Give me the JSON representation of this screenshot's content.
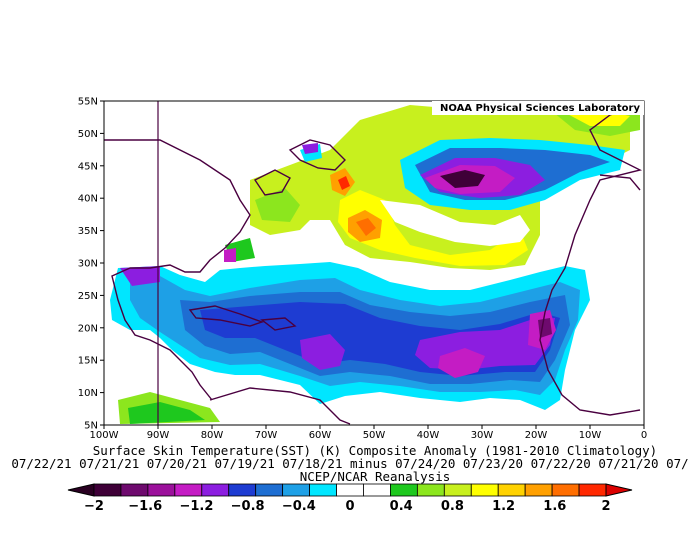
{
  "credit": "NOAA Physical Sciences Laboratory",
  "title": "Surface Skin Temperature(SST) (K) Composite Anomaly (1981-2010 Climatology)",
  "dates_line": "07/22/21 07/21/21 07/20/21 07/19/21 07/18/21 minus 07/24/20 07/23/20 07/22/20 07/21/20 07/",
  "source": "NCEP/NCAR Reanalysis",
  "lat_labels": [
    "55N",
    "50N",
    "45N",
    "40N",
    "35N",
    "30N",
    "25N",
    "20N",
    "15N",
    "10N",
    "5N"
  ],
  "lon_labels": [
    "100W",
    "90W",
    "80W",
    "70W",
    "60W",
    "50W",
    "40W",
    "30W",
    "20W",
    "10W",
    "0"
  ],
  "colorbar": {
    "labels": [
      "−2",
      "−1.6",
      "−1.2",
      "−0.8",
      "−0.4",
      "0",
      "0.4",
      "0.8",
      "1.2",
      "1.6",
      "2"
    ],
    "colors": [
      "#3f0038",
      "#6e0a6e",
      "#9b109b",
      "#c41cc4",
      "#8c1ee0",
      "#1e3cd2",
      "#1e6ed2",
      "#1ea0e6",
      "#00e6ff",
      "#ffffff",
      "#ffffff",
      "#1ec81e",
      "#8ce61e",
      "#c8f01e",
      "#ffff00",
      "#ffd200",
      "#ffa000",
      "#ff6e00",
      "#ff2800"
    ],
    "below_color": "#2a0022",
    "above_color": "#dc0000"
  },
  "chart_data": {
    "type": "heatmap",
    "variable": "Surface Skin Temperature(SST) (K) Composite Anomaly",
    "units": "K",
    "lon_range": [
      -100,
      0
    ],
    "lat_range": [
      5,
      55
    ],
    "scale_min": -2,
    "scale_max": 2,
    "contour_interval": 0.2,
    "anomaly_regions": [
      {
        "region": "Mid-Atlantic near 43N 35W",
        "lon": -35,
        "lat": 43,
        "anomaly": -2.0
      },
      {
        "region": "Caribbean / tropical band",
        "lon": -70,
        "lat": 19,
        "anomaly": -0.9
      },
      {
        "region": "Tropical Atlantic near 13N 35W",
        "lon": -35,
        "lat": 13,
        "anomaly": -1.8
      },
      {
        "region": "Off West Africa near 20N 18W",
        "lon": -18,
        "lat": 20,
        "anomaly": -1.8
      },
      {
        "region": "Gulf Stream near 41N 56W",
        "lon": -56,
        "lat": 41,
        "anomaly": 1.8
      },
      {
        "region": "Near 35N 52W",
        "lon": -52,
        "lat": 35,
        "anomaly": 1.6
      },
      {
        "region": "Subtropical arc 30N 40W",
        "lon": -40,
        "lat": 30,
        "anomaly": 0.8
      },
      {
        "region": "Near 52N 8W",
        "lon": -8,
        "lat": 52,
        "anomaly": 1.2
      }
    ]
  }
}
